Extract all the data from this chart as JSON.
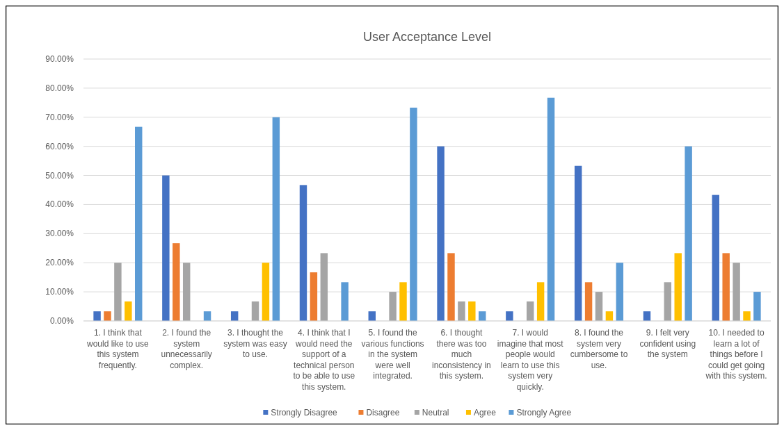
{
  "chart_data": {
    "type": "bar",
    "title": "User Acceptance Level",
    "categories": [
      "1. I think that would like to use this system frequently.",
      "2. I found the system unnecessarily complex.",
      "3. I thought the system was easy to use.",
      "4. I think that I would need the support of a technical person to be able to use this system.",
      "5. I found the various functions in the system were well integrated.",
      "6. I thought there was too much inconsistency in this system.",
      "7. I would imagine that most people would learn to use this system very quickly.",
      "8. I found the system very cumbersome to use.",
      "9. I felt very confident using the system",
      "10. I needed to learn a lot of things before I could get going with this system."
    ],
    "series": [
      {
        "name": "Strongly Disagree",
        "color": "#4472c4",
        "values": [
          3.3,
          50,
          3.3,
          46.7,
          3.3,
          60,
          3.3,
          53.3,
          3.3,
          43.3
        ]
      },
      {
        "name": "Disagree",
        "color": "#ed7d31",
        "values": [
          3.3,
          26.7,
          0,
          16.7,
          0,
          23.3,
          0,
          13.3,
          0,
          23.3
        ]
      },
      {
        "name": "Neutral",
        "color": "#a5a5a5",
        "values": [
          20,
          20,
          6.7,
          23.3,
          10,
          6.7,
          6.7,
          10,
          13.3,
          20
        ]
      },
      {
        "name": "Agree",
        "color": "#ffc000",
        "values": [
          6.7,
          0,
          20,
          0,
          13.3,
          6.7,
          13.3,
          3.3,
          23.3,
          3.3
        ]
      },
      {
        "name": "Strongly Agree",
        "color": "#5b9bd5",
        "values": [
          66.7,
          3.3,
          70,
          13.3,
          73.3,
          3.3,
          76.7,
          20,
          60,
          10
        ]
      }
    ],
    "ylim": [
      0,
      90
    ],
    "yticks": [
      {
        "value": 0,
        "label": "0.00%"
      },
      {
        "value": 10,
        "label": "10.00%"
      },
      {
        "value": 20,
        "label": "20.00%"
      },
      {
        "value": 30,
        "label": "30.00%"
      },
      {
        "value": 40,
        "label": "40.00%"
      },
      {
        "value": 50,
        "label": "50.00%"
      },
      {
        "value": 60,
        "label": "60.00%"
      },
      {
        "value": 70,
        "label": "70.00%"
      },
      {
        "value": 80,
        "label": "80.00%"
      },
      {
        "value": 90,
        "label": "90.00%"
      }
    ],
    "grid": "y",
    "legend": "bottom"
  }
}
